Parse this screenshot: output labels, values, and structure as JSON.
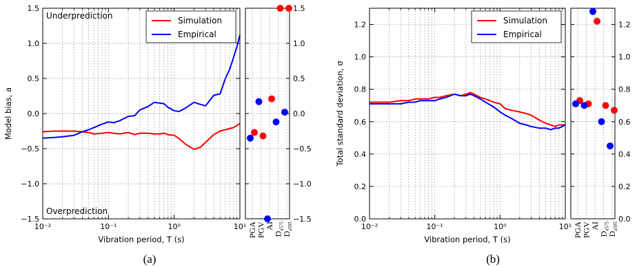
{
  "chart_data": [
    {
      "type": "line",
      "panel_label": "(a)",
      "xlabel": "Vibration period, T (s)",
      "ylabel": "Model bias, a",
      "xscale": "log",
      "xlim": [
        0.01,
        10
      ],
      "ylim": [
        -1.5,
        1.5
      ],
      "xtick_labels": [
        "10⁻²",
        "10⁻¹",
        "10⁰",
        "10¹"
      ],
      "ytick_labels": [
        "−1.5",
        "−1.0",
        "−0.5",
        "0.0",
        "0.5",
        "1.0",
        "1.5"
      ],
      "ytick_values": [
        -1.5,
        -1.0,
        -0.5,
        0.0,
        0.5,
        1.0,
        1.5
      ],
      "grid": true,
      "legend_position": "top-right",
      "annotations": [
        "Underprediction",
        "Overprediction"
      ],
      "series": [
        {
          "name": "Simulation",
          "color": "#ff0000",
          "x": [
            0.01,
            0.015,
            0.02,
            0.03,
            0.04,
            0.05,
            0.06,
            0.08,
            0.1,
            0.12,
            0.15,
            0.2,
            0.25,
            0.3,
            0.4,
            0.5,
            0.6,
            0.7,
            0.8,
            1.0,
            1.2,
            1.5,
            2.0,
            2.5,
            3.0,
            4.0,
            5.0,
            6.0,
            8.0,
            10.0
          ],
          "y": [
            -0.26,
            -0.25,
            -0.25,
            -0.25,
            -0.26,
            -0.27,
            -0.29,
            -0.28,
            -0.27,
            -0.28,
            -0.29,
            -0.27,
            -0.3,
            -0.28,
            -0.28,
            -0.29,
            -0.29,
            -0.28,
            -0.3,
            -0.31,
            -0.36,
            -0.44,
            -0.51,
            -0.48,
            -0.41,
            -0.3,
            -0.25,
            -0.23,
            -0.2,
            -0.14
          ]
        },
        {
          "name": "Empirical",
          "color": "#0000ff",
          "x": [
            0.01,
            0.015,
            0.02,
            0.03,
            0.04,
            0.05,
            0.06,
            0.08,
            0.1,
            0.12,
            0.15,
            0.2,
            0.25,
            0.3,
            0.4,
            0.5,
            0.6,
            0.7,
            0.8,
            1.0,
            1.2,
            1.5,
            2.0,
            2.5,
            3.0,
            4.0,
            5.0,
            6.0,
            7.0,
            8.0,
            9.0,
            10.0
          ],
          "y": [
            -0.35,
            -0.34,
            -0.33,
            -0.31,
            -0.26,
            -0.23,
            -0.2,
            -0.15,
            -0.12,
            -0.13,
            -0.1,
            -0.04,
            -0.03,
            0.05,
            0.1,
            0.16,
            0.15,
            0.14,
            0.09,
            0.04,
            0.03,
            0.08,
            0.16,
            0.13,
            0.11,
            0.26,
            0.28,
            0.5,
            0.63,
            0.8,
            0.95,
            1.12
          ]
        }
      ],
      "side_panel": {
        "ylim": [
          -1.5,
          1.5
        ],
        "categories": [
          "PGA",
          "PGV",
          "AI",
          "D5-75",
          "D5-95"
        ],
        "category_labels": [
          {
            "main": "PGA",
            "sub": ""
          },
          {
            "main": "PGV",
            "sub": ""
          },
          {
            "main": "AI",
            "sub": ""
          },
          {
            "main": "D",
            "sub": "a575"
          },
          {
            "main": "D",
            "sub": "a595"
          }
        ],
        "simulation": [
          -0.27,
          -0.32,
          0.21,
          1.5,
          1.5
        ],
        "empirical": [
          -0.35,
          0.17,
          -1.5,
          -0.12,
          0.02
        ]
      }
    },
    {
      "type": "line",
      "panel_label": "(b)",
      "xlabel": "Vibration period, T (s)",
      "ylabel": "Total standard deviation, σ",
      "xscale": "log",
      "xlim": [
        0.01,
        10
      ],
      "ylim": [
        0.0,
        1.3
      ],
      "xtick_labels": [
        "10⁻²",
        "10⁻¹",
        "10⁰",
        "10¹"
      ],
      "ytick_labels": [
        "0.0",
        "0.2",
        "0.4",
        "0.6",
        "0.8",
        "1.0",
        "1.2"
      ],
      "ytick_values": [
        0.0,
        0.2,
        0.4,
        0.6,
        0.8,
        1.0,
        1.2
      ],
      "grid": true,
      "legend_position": "top-right",
      "series": [
        {
          "name": "Simulation",
          "color": "#ff0000",
          "x": [
            0.01,
            0.015,
            0.02,
            0.03,
            0.04,
            0.05,
            0.06,
            0.08,
            0.1,
            0.12,
            0.15,
            0.2,
            0.25,
            0.3,
            0.35,
            0.4,
            0.5,
            0.6,
            0.8,
            1.0,
            1.2,
            1.5,
            2.0,
            2.5,
            3.0,
            4.0,
            5.0,
            6.0,
            7.0,
            8.0,
            10.0
          ],
          "y": [
            0.72,
            0.72,
            0.72,
            0.73,
            0.73,
            0.74,
            0.74,
            0.74,
            0.75,
            0.75,
            0.76,
            0.77,
            0.76,
            0.77,
            0.78,
            0.77,
            0.75,
            0.74,
            0.72,
            0.71,
            0.68,
            0.67,
            0.66,
            0.65,
            0.64,
            0.61,
            0.59,
            0.58,
            0.57,
            0.58,
            0.58
          ]
        },
        {
          "name": "Empirical",
          "color": "#0000ff",
          "x": [
            0.01,
            0.015,
            0.02,
            0.03,
            0.04,
            0.05,
            0.06,
            0.08,
            0.1,
            0.12,
            0.15,
            0.2,
            0.25,
            0.3,
            0.35,
            0.4,
            0.5,
            0.6,
            0.8,
            1.0,
            1.2,
            1.5,
            2.0,
            2.5,
            3.0,
            4.0,
            5.0,
            6.0,
            7.0,
            8.0,
            10.0
          ],
          "y": [
            0.71,
            0.71,
            0.71,
            0.71,
            0.72,
            0.72,
            0.73,
            0.73,
            0.73,
            0.74,
            0.75,
            0.77,
            0.76,
            0.76,
            0.77,
            0.76,
            0.74,
            0.72,
            0.69,
            0.66,
            0.64,
            0.62,
            0.59,
            0.58,
            0.57,
            0.56,
            0.56,
            0.55,
            0.56,
            0.56,
            0.58
          ]
        }
      ],
      "side_panel": {
        "ylim": [
          0.0,
          1.3
        ],
        "categories": [
          "PGA",
          "PGV",
          "AI",
          "D5-75",
          "D5-95"
        ],
        "category_labels": [
          {
            "main": "PGA",
            "sub": ""
          },
          {
            "main": "PGV",
            "sub": ""
          },
          {
            "main": "AI",
            "sub": ""
          },
          {
            "main": "D",
            "sub": "a575"
          },
          {
            "main": "D",
            "sub": "a595"
          }
        ],
        "simulation": [
          0.73,
          0.71,
          1.22,
          0.7,
          0.67
        ],
        "empirical": [
          0.71,
          0.7,
          1.28,
          0.6,
          0.45
        ]
      }
    }
  ]
}
